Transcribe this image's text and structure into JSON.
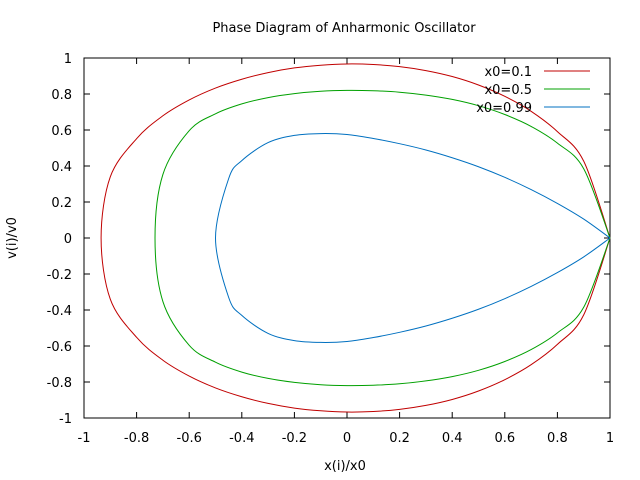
{
  "chart_data": {
    "type": "line",
    "title": "Phase Diagram of Anharmonic Oscillator",
    "xlabel": "x(i)/x0",
    "ylabel": "v(i)/v0",
    "xlim": [
      -1,
      1
    ],
    "ylim": [
      -1,
      1
    ],
    "x_ticks": [
      -1,
      -0.8,
      -0.6,
      -0.4,
      -0.2,
      0,
      0.2,
      0.4,
      0.6,
      0.8,
      1
    ],
    "y_ticks": [
      -1,
      -0.8,
      -0.6,
      -0.4,
      -0.2,
      0,
      0.2,
      0.4,
      0.6,
      0.8,
      1
    ],
    "x_tick_labels": [
      "-1",
      "-0.8",
      "-0.6",
      "-0.4",
      "-0.2",
      "0",
      "0.2",
      "0.4",
      "0.6",
      "0.8",
      "1"
    ],
    "y_tick_labels": [
      "-1",
      "-0.8",
      "-0.6",
      "-0.4",
      "-0.2",
      "0",
      "0.2",
      "0.4",
      "0.6",
      "0.8",
      "1"
    ],
    "grid": false,
    "legend_position": "top-right",
    "series": [
      {
        "name": "x0=0.1",
        "color": "#c00000",
        "x": [
          1.0,
          0.9,
          0.8,
          0.7,
          0.6,
          0.5,
          0.4,
          0.3,
          0.2,
          0.1,
          0.0,
          -0.1,
          -0.2,
          -0.3,
          -0.4,
          -0.5,
          -0.6,
          -0.7,
          -0.8,
          -0.9,
          -0.935
        ],
        "y": [
          0.0,
          0.427,
          0.591,
          0.704,
          0.787,
          0.85,
          0.897,
          0.93,
          0.952,
          0.964,
          0.967,
          0.96,
          0.945,
          0.919,
          0.882,
          0.833,
          0.767,
          0.679,
          0.552,
          0.34,
          0.0
        ]
      },
      {
        "name": "x0=0.5",
        "color": "#00a000",
        "x": [
          1.0,
          0.9,
          0.8,
          0.7,
          0.6,
          0.5,
          0.4,
          0.3,
          0.2,
          0.1,
          0.0,
          -0.1,
          -0.2,
          -0.3,
          -0.4,
          -0.5,
          -0.6,
          -0.7,
          -0.73
        ],
        "y": [
          0.0,
          0.385,
          0.527,
          0.62,
          0.686,
          0.735,
          0.77,
          0.794,
          0.81,
          0.818,
          0.82,
          0.815,
          0.802,
          0.78,
          0.745,
          0.69,
          0.596,
          0.353,
          0.0
        ]
      },
      {
        "name": "x0=0.99",
        "color": "#0070c0",
        "x": [
          1.0,
          0.9,
          0.8,
          0.7,
          0.6,
          0.5,
          0.4,
          0.3,
          0.2,
          0.1,
          0.0,
          -0.1,
          -0.2,
          -0.3,
          -0.4,
          -0.45,
          -0.5
        ],
        "y": [
          0.0,
          0.105,
          0.192,
          0.269,
          0.337,
          0.396,
          0.446,
          0.489,
          0.524,
          0.553,
          0.575,
          0.58,
          0.57,
          0.53,
          0.43,
          0.33,
          0.0
        ]
      }
    ]
  }
}
